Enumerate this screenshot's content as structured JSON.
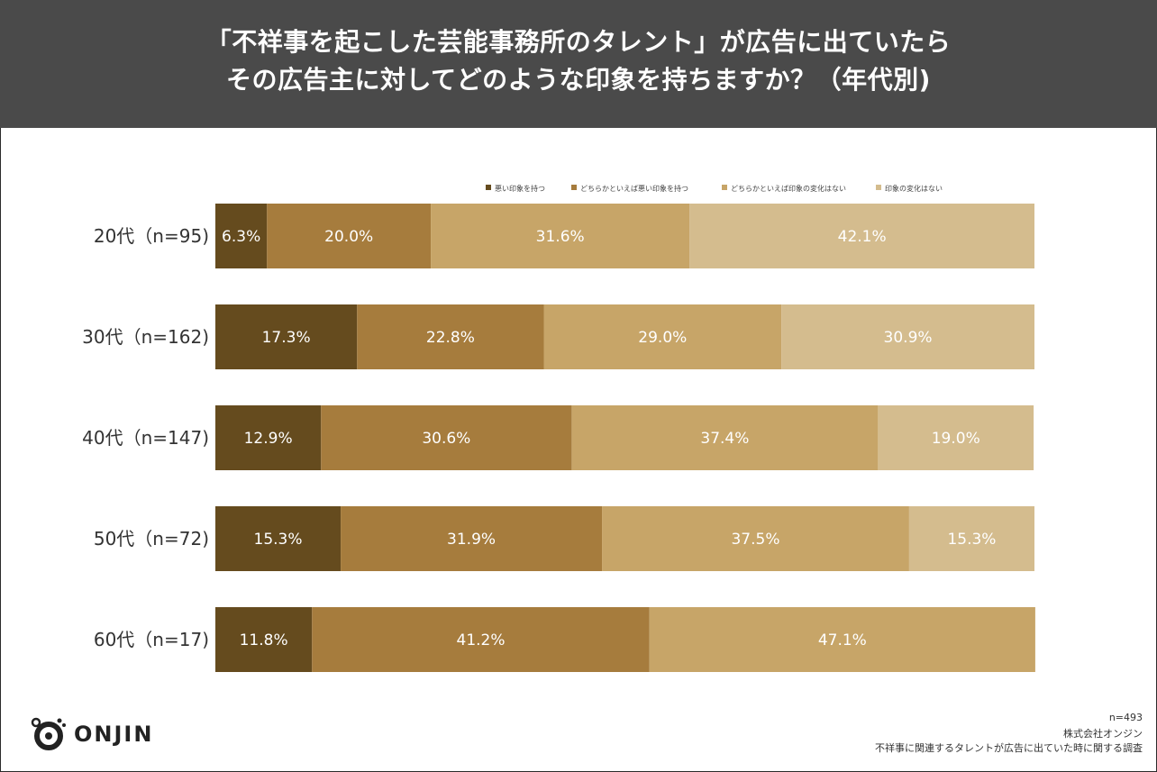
{
  "header": {
    "title_line1": "「不祥事を起こした芸能事務所のタレント」が広告に出ていたら",
    "title_line2": "その広告主に対してどのような印象を持ちますか？（年代別)"
  },
  "chart_data": {
    "type": "bar",
    "orientation": "horizontal-stacked-100",
    "categories": [
      "20代（n=95)",
      "30代（n=162)",
      "40代（n=147)",
      "50代（n=72)",
      "60代（n=17)"
    ],
    "series": [
      {
        "name": "悪い印象を持つ",
        "color": "#654b1e",
        "values": [
          6.3,
          17.3,
          12.9,
          15.3,
          11.8
        ],
        "labels": [
          "6.3%",
          "17.3%",
          "12.9%",
          "15.3%",
          "11.8%"
        ]
      },
      {
        "name": "どちらかといえば悪い印象を持つ",
        "color": "#a67c3d",
        "values": [
          20.0,
          22.8,
          30.6,
          31.9,
          41.2
        ],
        "labels": [
          "20.0%",
          "22.8%",
          "30.6%",
          "31.9%",
          "41.2%"
        ]
      },
      {
        "name": "どちらかといえば印象の変化はない",
        "color": "#c7a568",
        "values": [
          31.6,
          29.0,
          37.4,
          37.5,
          47.1
        ],
        "labels": [
          "31.6%",
          "29.0%",
          "37.4%",
          "37.5%",
          "47.1%"
        ]
      },
      {
        "name": "印象の変化はない",
        "color": "#d4bc8e",
        "values": [
          42.1,
          30.9,
          19.0,
          15.3,
          0
        ],
        "labels": [
          "42.1%",
          "30.9%",
          "19.0%",
          "15.3%",
          ""
        ]
      }
    ],
    "xlim": [
      0,
      100
    ],
    "legend_position": "top-right"
  },
  "footer": {
    "n": "n=493",
    "company": "株式会社オンジン",
    "survey": "不祥事に関連するタレントが広告に出ていた時に関する調査"
  },
  "logo": {
    "text": "ONJIN"
  }
}
